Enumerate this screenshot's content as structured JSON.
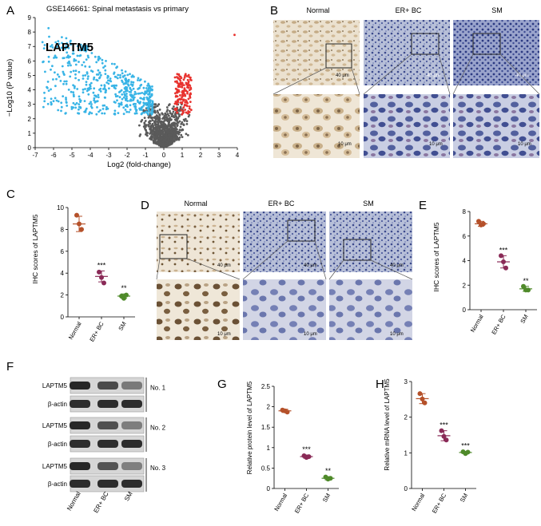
{
  "panels": {
    "A": "A",
    "B": "B",
    "C": "C",
    "D": "D",
    "E": "E",
    "F": "F",
    "G": "G",
    "H": "H"
  },
  "groups": {
    "normal": "Normal",
    "er": "ER+ BC",
    "sm": "SM"
  },
  "colors": {
    "normal": "#b5512a",
    "er": "#8a2a57",
    "sm": "#4f8a2a",
    "up": "#e8322e",
    "down": "#38b4e6",
    "ns": "#5a5a5a"
  },
  "volcano": {
    "title": "GSE146661: Spinal metastasis vs primary",
    "highlight": "LAPTM5",
    "highlight_point": {
      "x": -4.3,
      "y": 6.9
    }
  },
  "micro": {
    "scale_40": "40 μm",
    "scale_10": "10 μm"
  },
  "western": {
    "blots": [
      {
        "protein": "LAPTM5",
        "loading": "β-actin",
        "label": "No. 1"
      },
      {
        "protein": "LAPTM5",
        "loading": "β-actin",
        "label": "No. 2"
      },
      {
        "protein": "LAPTM5",
        "loading": "β-actin",
        "label": "No. 3"
      }
    ]
  },
  "chart_data": [
    {
      "panel": "A",
      "type": "scatter",
      "title": "GSE146661: Spinal metastasis vs primary",
      "xlabel": "Log2 (fold-change)",
      "ylabel": "−Log10 (P value)",
      "xlim": [
        -7,
        4
      ],
      "ylim": [
        0,
        9
      ],
      "xticks": [
        -7,
        -6,
        -5,
        -4,
        -3,
        -2,
        -1,
        0,
        1,
        2,
        3,
        4
      ],
      "yticks": [
        0,
        1,
        2,
        3,
        4,
        5,
        6,
        7,
        8,
        9
      ],
      "annotations": [
        {
          "label": "LAPTM5",
          "x": -4.3,
          "y": 6.9
        }
      ]
    },
    {
      "panel": "C",
      "type": "scatter",
      "ylabel": "IHC scores of LAPTM5",
      "categories": [
        "Normal",
        "ER+ BC",
        "SM"
      ],
      "ylim": [
        0,
        10
      ],
      "yticks": [
        0,
        2,
        4,
        6,
        8,
        10
      ],
      "means": [
        8.5,
        3.7,
        1.9
      ],
      "errors": [
        0.7,
        0.5,
        0.2
      ],
      "points": [
        [
          9.3,
          8.5,
          8.0
        ],
        [
          4.1,
          3.6,
          3.1
        ],
        [
          1.9,
          1.7,
          2.0
        ]
      ],
      "significance": [
        "",
        "***",
        "**"
      ]
    },
    {
      "panel": "E",
      "type": "scatter",
      "ylabel": "IHC scores of LAPTM5",
      "categories": [
        "Normal",
        "ER+ BC",
        "SM"
      ],
      "ylim": [
        0,
        8
      ],
      "yticks": [
        0,
        2,
        4,
        6,
        8
      ],
      "means": [
        7.0,
        3.9,
        1.7
      ],
      "errors": [
        0.2,
        0.5,
        0.2
      ],
      "points": [
        [
          7.2,
          6.9,
          7.0
        ],
        [
          4.4,
          3.9,
          3.4
        ],
        [
          1.9,
          1.6,
          1.6
        ]
      ],
      "significance": [
        "",
        "***",
        "**"
      ]
    },
    {
      "panel": "G",
      "type": "scatter",
      "ylabel": "Relative protein level of LAPTM5",
      "categories": [
        "Normal",
        "ER+ BC",
        "SM"
      ],
      "ylim": [
        0,
        2.5
      ],
      "yticks": [
        0,
        0.5,
        1.0,
        1.5,
        2.0,
        2.5
      ],
      "means": [
        1.9,
        0.78,
        0.25
      ],
      "errors": [
        0.04,
        0.04,
        0.04
      ],
      "points": [
        [
          1.92,
          1.9,
          1.87
        ],
        [
          0.8,
          0.76,
          0.78
        ],
        [
          0.28,
          0.23,
          0.25
        ]
      ],
      "significance": [
        "",
        "***",
        "**"
      ]
    },
    {
      "panel": "H",
      "type": "scatter",
      "ylabel": "Relative mRNA level of LAPTM5",
      "categories": [
        "Normal",
        "ER+ BC",
        "SM"
      ],
      "ylim": [
        0,
        3
      ],
      "yticks": [
        0,
        1,
        2,
        3
      ],
      "means": [
        2.52,
        1.48,
        1.01
      ],
      "errors": [
        0.14,
        0.14,
        0.03
      ],
      "points": [
        [
          2.66,
          2.51,
          2.4
        ],
        [
          1.62,
          1.46,
          1.36
        ],
        [
          1.03,
          0.98,
          1.02
        ]
      ],
      "significance": [
        "",
        "***",
        "***"
      ]
    }
  ]
}
